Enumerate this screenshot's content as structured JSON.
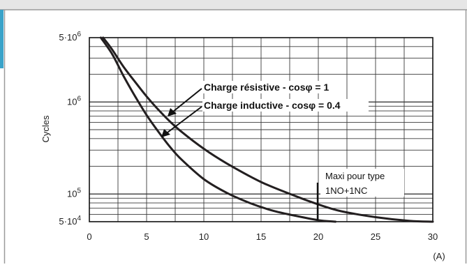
{
  "chart_data": {
    "type": "line",
    "ylabel": "Cycles",
    "x_unit": "(A)",
    "x_ticks": [
      0,
      5,
      10,
      15,
      20,
      25,
      30
    ],
    "x_tick_labels": [
      "0",
      "5",
      "10",
      "15",
      "20",
      "25",
      "30"
    ],
    "xlim": [
      0,
      30
    ],
    "yscale": "log",
    "ylim": [
      50000,
      5000000
    ],
    "y_ticks": [
      50000,
      100000,
      1000000,
      5000000
    ],
    "y_tick_labels": [
      {
        "base": "5·10",
        "exp": "4"
      },
      {
        "base": "10",
        "exp": "5"
      },
      {
        "base": "10",
        "exp": "6"
      },
      {
        "base": "5·10",
        "exp": "6"
      }
    ],
    "grid": true,
    "series": [
      {
        "name": "Charge résistive - cosφ = 1",
        "x": [
          1.2,
          2,
          3,
          4,
          5,
          6,
          7,
          8,
          10,
          12,
          15,
          18,
          20,
          22,
          25,
          28,
          30
        ],
        "y": [
          5000000,
          3700000,
          2400000,
          1650000,
          1150000,
          830000,
          620000,
          480000,
          310000,
          215000,
          135000,
          95000,
          77000,
          65000,
          56000,
          51000,
          50000
        ]
      },
      {
        "name": "Charge inductive - cosφ = 0.4",
        "x": [
          1,
          2,
          3,
          4,
          5,
          6,
          7,
          8,
          10,
          12,
          14,
          16,
          18,
          20,
          21.5
        ],
        "y": [
          5000000,
          3300000,
          1900000,
          1150000,
          720000,
          480000,
          330000,
          240000,
          145000,
          103000,
          80000,
          66000,
          58000,
          52000,
          50000
        ]
      }
    ],
    "annotations": {
      "resistive_label": "Charge résistive - cosφ = 1",
      "inductive_label": "Charge inductive - cosφ = 0.4",
      "maxi_line1": "Maxi pour type",
      "maxi_line2": "1NO+1NC",
      "maxi_x": 20
    },
    "colors": {
      "curve": "#231f20",
      "grid": "#3a3a3a",
      "border": "#9a9a9a",
      "accent_bar": "#3aa3c9"
    }
  }
}
